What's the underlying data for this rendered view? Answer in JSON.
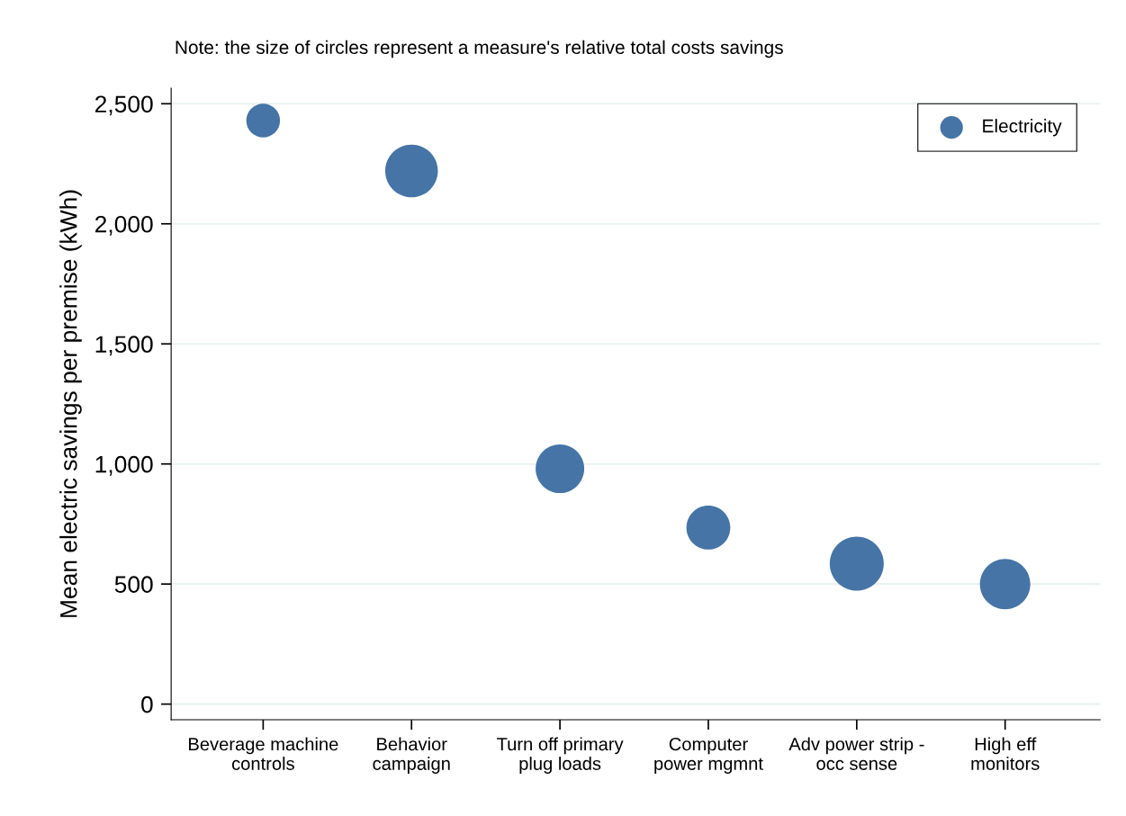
{
  "chart_data": {
    "type": "bubble",
    "annotations": [
      "Note: the size of circles represent a measure's relative total costs savings"
    ],
    "ylabel": "Mean electric savings per premise (kWh)",
    "categories": [
      "Beverage machine\ncontrols",
      "Behavior\ncampaign",
      "Turn off primary\nplug loads",
      "Computer\npower mgmnt",
      "Adv power strip -\nocc sense",
      "High eff\nmonitors"
    ],
    "series": [
      {
        "name": "Electricity",
        "color": "#4674a6",
        "values": [
          2430,
          2220,
          980,
          735,
          585,
          500
        ],
        "sizes": [
          0.39,
          0.95,
          0.81,
          0.66,
          1,
          0.87
        ]
      }
    ],
    "ylim": [
      -65,
      2565
    ],
    "yticks": [
      0,
      {
        "value": 500,
        "label": "500"
      },
      {
        "value": 1000,
        "label": "1,000"
      },
      {
        "value": 1500,
        "label": "1,500"
      },
      {
        "value": 2000,
        "label": "2,000"
      },
      {
        "value": 2500,
        "label": "2,500"
      }
    ],
    "grid": "y",
    "legend": "top right",
    "marker": "circle"
  }
}
